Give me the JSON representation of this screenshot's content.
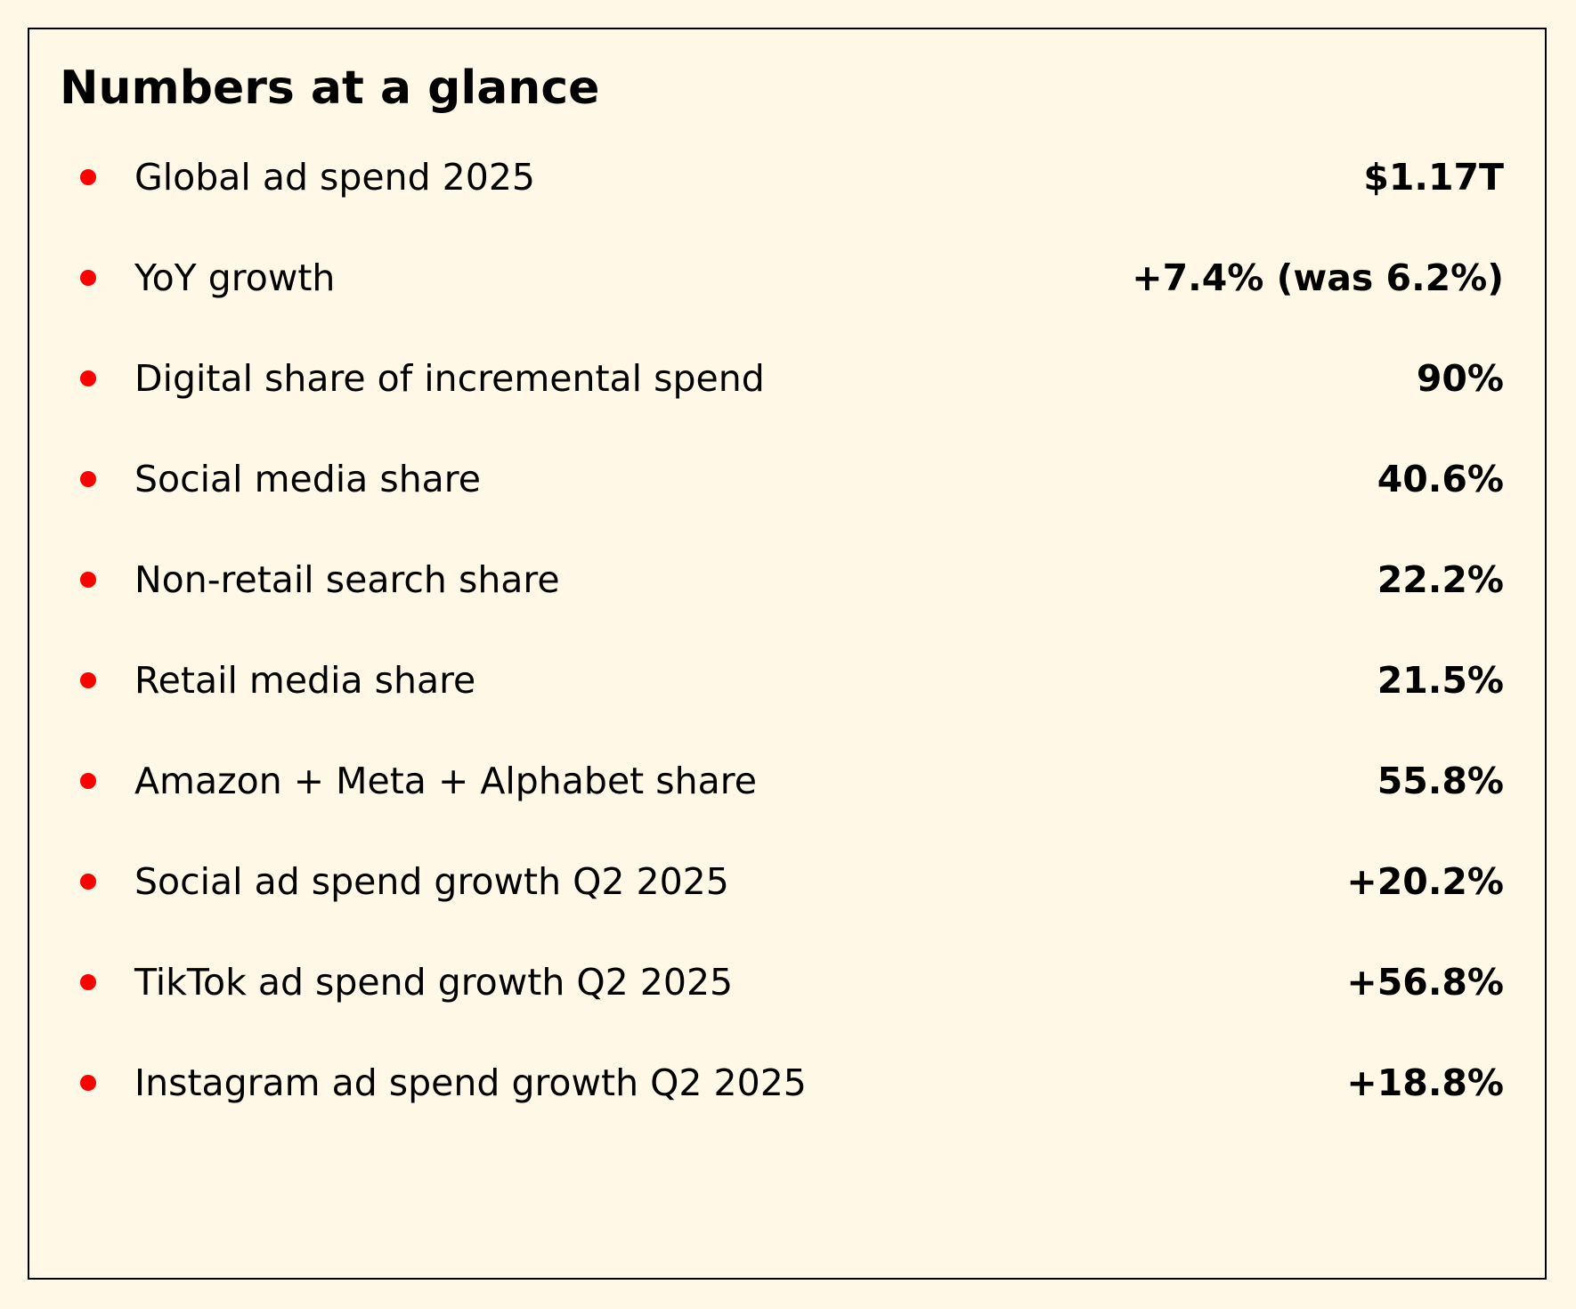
{
  "panel": {
    "title": "Numbers at a glance",
    "bullet_color": "#ff0000",
    "border_color": "#000000",
    "background_color": "#fff8e6"
  },
  "stats": [
    {
      "label": "Global ad spend 2025",
      "value": "$1.17T"
    },
    {
      "label": "YoY growth",
      "value": "+7.4% (was 6.2%)"
    },
    {
      "label": "Digital share of incremental spend",
      "value": "90%"
    },
    {
      "label": "Social media share",
      "value": "40.6%"
    },
    {
      "label": "Non-retail search share",
      "value": "22.2%"
    },
    {
      "label": "Retail media share",
      "value": "21.5%"
    },
    {
      "label": "Amazon + Meta + Alphabet share",
      "value": "55.8%"
    },
    {
      "label": "Social ad spend growth Q2 2025",
      "value": "+20.2%"
    },
    {
      "label": "TikTok ad spend growth Q2 2025",
      "value": "+56.8%"
    },
    {
      "label": "Instagram ad spend growth Q2 2025",
      "value": "+18.8%"
    }
  ]
}
